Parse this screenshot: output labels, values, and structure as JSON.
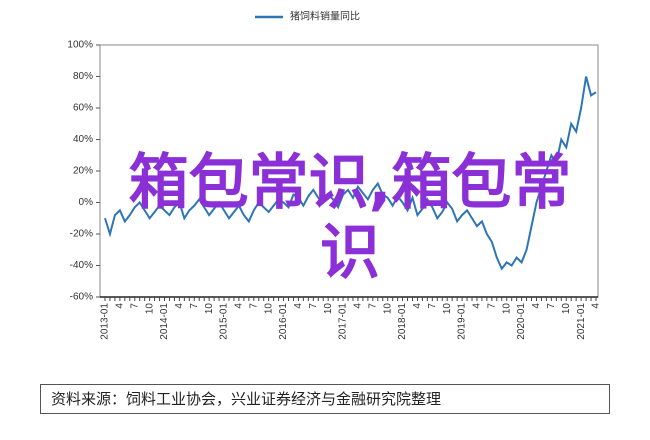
{
  "chart_data": {
    "type": "line",
    "categories": [
      "2013-01",
      null,
      null,
      "4",
      null,
      null,
      "7",
      null,
      null,
      "10",
      null,
      null,
      "2014-01",
      null,
      null,
      "4",
      null,
      null,
      "7",
      null,
      null,
      "10",
      null,
      null,
      "2015-01",
      null,
      null,
      "4",
      null,
      null,
      "7",
      null,
      null,
      "10",
      null,
      null,
      "2016-01",
      null,
      null,
      "4",
      null,
      null,
      "7",
      null,
      null,
      "10",
      null,
      null,
      "2017-01",
      null,
      null,
      "4",
      null,
      null,
      "7",
      null,
      null,
      "10",
      null,
      null,
      "2018-01",
      null,
      null,
      "4",
      null,
      null,
      "7",
      null,
      null,
      "10",
      null,
      null,
      "2019-01",
      null,
      null,
      "4",
      null,
      null,
      "7",
      null,
      null,
      "10",
      null,
      null,
      "2020-01",
      null,
      null,
      "4",
      null,
      null,
      "7",
      null,
      null,
      "10",
      null,
      null,
      "2021-01",
      null,
      null,
      "4"
    ],
    "series": [
      {
        "name": "猪饲料销量同比",
        "color": "#2e75b6",
        "values": [
          -10,
          -20,
          -8,
          -5,
          -12,
          -8,
          -3,
          0,
          -5,
          -10,
          -6,
          -2,
          -5,
          -8,
          -3,
          0,
          -10,
          -5,
          -2,
          2,
          -3,
          -8,
          -4,
          0,
          -5,
          -10,
          -6,
          -2,
          -8,
          -12,
          -5,
          0,
          -3,
          -6,
          -2,
          2,
          0,
          -3,
          5,
          3,
          -2,
          4,
          8,
          3,
          0,
          5,
          2,
          -3,
          5,
          8,
          3,
          10,
          6,
          2,
          8,
          12,
          5,
          3,
          -2,
          4,
          0,
          -5,
          3,
          -8,
          -4,
          2,
          -3,
          -10,
          -6,
          0,
          -4,
          -12,
          -8,
          -5,
          -10,
          -15,
          -12,
          -20,
          -25,
          -35,
          -42,
          -38,
          -40,
          -35,
          -38,
          -30,
          -15,
          0,
          10,
          20,
          30,
          25,
          40,
          35,
          50,
          45,
          60,
          80,
          68,
          70
        ]
      }
    ],
    "ylim": [
      -60,
      100
    ],
    "yticks": [
      {
        "value": -60,
        "label": "-60%"
      },
      {
        "value": -40,
        "label": "-40%"
      },
      {
        "value": -20,
        "label": "-20%"
      },
      {
        "value": 0,
        "label": "0%"
      },
      {
        "value": 20,
        "label": "20%"
      },
      {
        "value": 40,
        "label": "40%"
      },
      {
        "value": 60,
        "label": "60%"
      },
      {
        "value": 80,
        "label": "80%"
      },
      {
        "value": 100,
        "label": "100%"
      }
    ],
    "grid": false
  },
  "watermark": "箱包常识,箱包常识",
  "source": "资料来源：饲料工业协会，兴业证券经济与金融研究院整理"
}
